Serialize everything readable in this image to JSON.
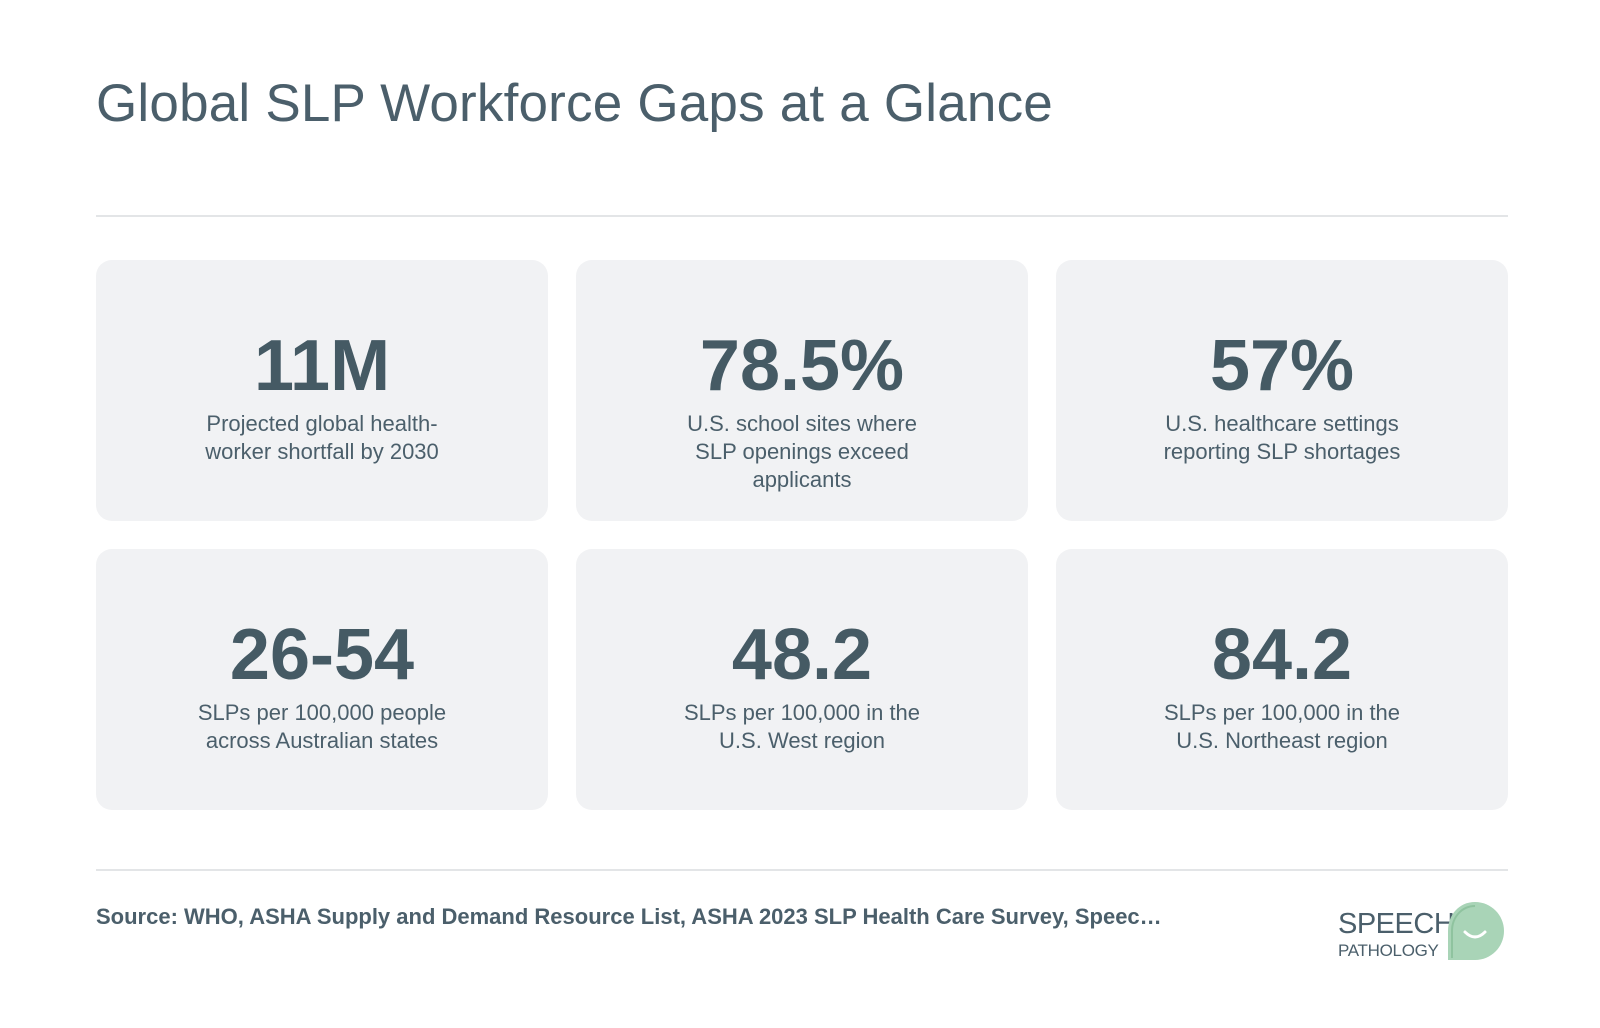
{
  "title": "Global SLP Workforce Gaps at a Glance",
  "stats": [
    {
      "value": "11M",
      "label": "Projected global health-worker shortfall by 2030"
    },
    {
      "value": "78.5%",
      "label": "U.S. school sites where SLP openings exceed applicants"
    },
    {
      "value": "57%",
      "label": "U.S. healthcare settings reporting SLP shortages"
    },
    {
      "value": "26-54",
      "label": "SLPs per 100,000 people across Australian states"
    },
    {
      "value": "48.2",
      "label": "SLPs per 100,000 in the U.S. West region"
    },
    {
      "value": "84.2",
      "label": "SLPs per 100,000 in the U.S. Northeast region"
    }
  ],
  "source": "Source: WHO, ASHA Supply and Demand Resource List, ASHA 2023 SLP Health Care Survey, Speec…",
  "brand": {
    "line1": "SPEECH",
    "line2": "PATHOLOGY",
    "icon": "speech-bubble-smile-icon",
    "accent_color": "#a9d4b7"
  },
  "colors": {
    "text": "#455a64",
    "card_background": "#f1f2f4",
    "divider": "#e3e5e7"
  }
}
